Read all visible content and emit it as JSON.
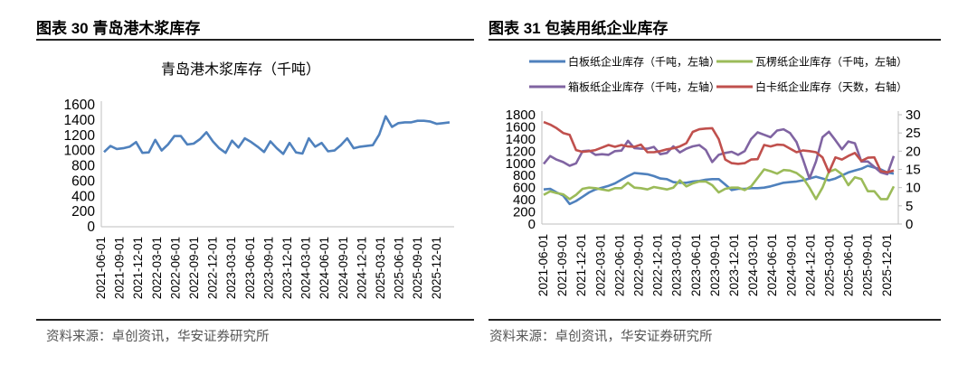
{
  "figures": [
    {
      "title": "图表 30 青岛港木浆库存",
      "source": "资料来源：卓创资讯，华安证券研究所"
    },
    {
      "title": "图表 31 包装用纸企业库存",
      "source": "资料来源：卓创资讯，华安证券研究所"
    }
  ],
  "chart_data": [
    {
      "type": "line",
      "title": "青岛港木浆库存（千吨）",
      "xlabel": "",
      "ylabel": "",
      "ylim": [
        0,
        1600
      ],
      "yticks": [
        "0",
        "200",
        "400",
        "600",
        "800",
        "1000",
        "1200",
        "1400",
        "1600"
      ],
      "xticks": [
        "2021-06-01",
        "2021-09-01",
        "2021-12-01",
        "2022-03-01",
        "2022-06-01",
        "2022-09-01",
        "2022-12-01",
        "2023-03-01",
        "2023-06-01",
        "2023-09-01",
        "2023-12-01",
        "2024-03-01",
        "2024-06-01",
        "2024-09-01",
        "2024-12-01",
        "2025-03-01",
        "2025-06-01",
        "2025-09-01",
        "2025-12-01"
      ],
      "series": [
        {
          "name": "青岛港木浆库存",
          "color": "#4f81bd",
          "axis": "left",
          "values": [
            980,
            1060,
            1020,
            1030,
            1050,
            1110,
            970,
            975,
            1140,
            1000,
            1080,
            1190,
            1190,
            1080,
            1090,
            1150,
            1240,
            1120,
            1030,
            970,
            1130,
            1040,
            1160,
            1110,
            1050,
            980,
            1120,
            1030,
            955,
            1100,
            975,
            960,
            1160,
            1050,
            1100,
            990,
            1000,
            1070,
            1160,
            1030,
            1050,
            1060,
            1070,
            1210,
            1450,
            1310,
            1360,
            1370,
            1370,
            1390,
            1390,
            1380,
            1350,
            1360,
            1370
          ]
        }
      ],
      "grid": false,
      "legend": "none"
    },
    {
      "type": "line",
      "title": "",
      "ylim": [
        0,
        1800
      ],
      "y2lim": [
        0,
        30
      ],
      "yticks": [
        "0",
        "200",
        "400",
        "600",
        "800",
        "1000",
        "1200",
        "1400",
        "1600",
        "1800"
      ],
      "y2ticks": [
        "0",
        "5",
        "10",
        "15",
        "20",
        "25",
        "30"
      ],
      "xticks": [
        "2021-06-01",
        "2021-09-01",
        "2021-12-01",
        "2022-03-01",
        "2022-06-01",
        "2022-09-01",
        "2022-12-01",
        "2023-03-01",
        "2023-06-01",
        "2023-09-01",
        "2023-12-01",
        "2024-03-01",
        "2024-06-01",
        "2024-09-01",
        "2024-12-01",
        "2025-03-01",
        "2025-06-01",
        "2025-09-01",
        "2025-12-01"
      ],
      "legend": "top",
      "grid": false,
      "series": [
        {
          "name": "白板纸企业库存（千吨，左轴）",
          "color": "#4f81bd",
          "axis": "left",
          "values": [
            570,
            580,
            520,
            470,
            330,
            380,
            450,
            520,
            570,
            600,
            630,
            670,
            730,
            790,
            840,
            830,
            820,
            790,
            750,
            740,
            690,
            680,
            680,
            700,
            710,
            730,
            740,
            740,
            650,
            560,
            580,
            580,
            590,
            590,
            600,
            620,
            650,
            680,
            690,
            700,
            720,
            750,
            780,
            750,
            720,
            750,
            800,
            850,
            880,
            910,
            960,
            930,
            900,
            850,
            830
          ]
        },
        {
          "name": "瓦楞纸企业库存（千吨，左轴）",
          "color": "#9bbb59",
          "axis": "left",
          "values": [
            480,
            540,
            510,
            490,
            410,
            480,
            580,
            600,
            590,
            570,
            550,
            590,
            590,
            680,
            600,
            590,
            570,
            610,
            590,
            570,
            600,
            720,
            620,
            670,
            700,
            700,
            640,
            520,
            580,
            600,
            600,
            560,
            620,
            760,
            900,
            870,
            830,
            890,
            880,
            840,
            760,
            600,
            410,
            600,
            860,
            900,
            820,
            640,
            770,
            740,
            540,
            540,
            410,
            410,
            620
          ]
        },
        {
          "name": "箱板纸企业库存（千吨，左轴）",
          "color": "#8064a2",
          "axis": "left",
          "values": [
            990,
            1120,
            1060,
            1020,
            960,
            1000,
            1200,
            1210,
            1140,
            1150,
            1140,
            1200,
            1210,
            1370,
            1250,
            1240,
            1240,
            1270,
            1150,
            1170,
            1280,
            1180,
            1240,
            1280,
            1300,
            1220,
            1020,
            1140,
            1170,
            1190,
            1140,
            1200,
            1400,
            1510,
            1470,
            1430,
            1540,
            1560,
            1500,
            1350,
            1060,
            750,
            1030,
            1430,
            1520,
            1380,
            1230,
            1360,
            1330,
            1030,
            1030,
            940,
            850,
            820,
            1120
          ]
        },
        {
          "name": "白卡纸企业库存（天数，右轴）",
          "color": "#c0504d",
          "axis": "right",
          "values": [
            28,
            27.3,
            26.3,
            25,
            24.5,
            20.3,
            19.8,
            20,
            20.3,
            21,
            21.7,
            21.2,
            21.7,
            21.3,
            21.2,
            21.8,
            19.7,
            19.7,
            20,
            20.5,
            20.8,
            21.3,
            22.2,
            25.3,
            26,
            26.2,
            26.3,
            23.3,
            17.7,
            16.7,
            16.5,
            16.7,
            17.7,
            17.8,
            21.7,
            21.3,
            21.8,
            21.7,
            20.7,
            19.7,
            20.2,
            20,
            19.7,
            18.3,
            14.2,
            18.3,
            17.7,
            18.7,
            19.5,
            17.3,
            18.2,
            18.3,
            14.5,
            14.2,
            14.7
          ]
        }
      ]
    }
  ]
}
